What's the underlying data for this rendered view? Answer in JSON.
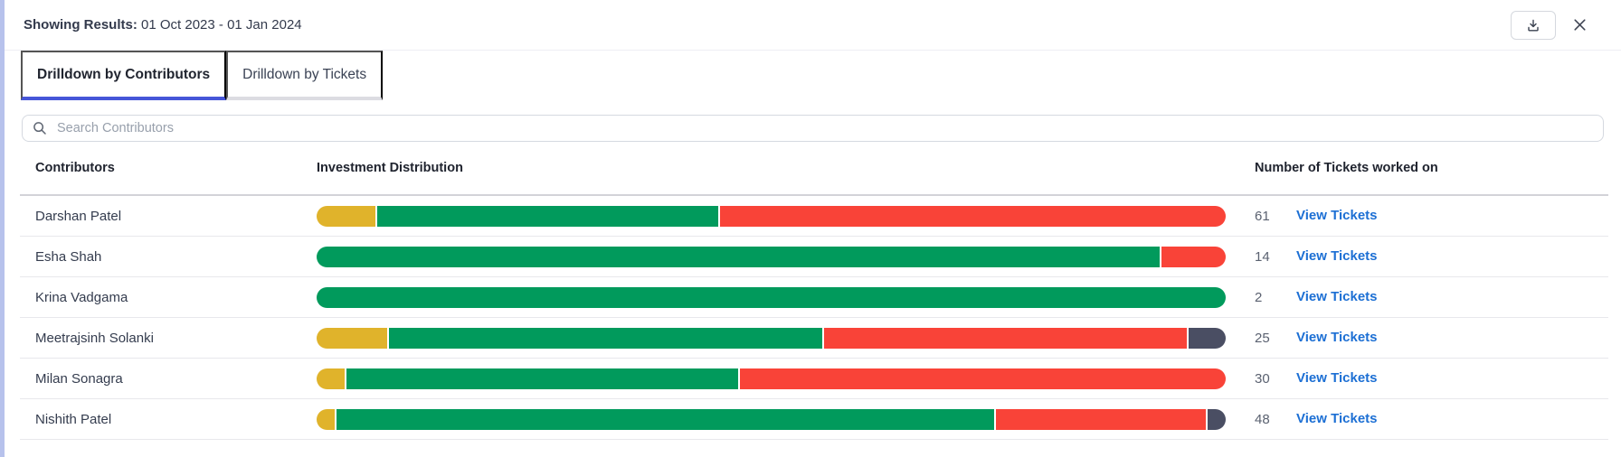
{
  "topbar": {
    "showing_label": "Showing Results:",
    "date_range": "01 Oct 2023 - 01 Jan 2024",
    "download_icon": "download-icon",
    "close_icon": "close-icon"
  },
  "tabs": [
    {
      "label": "Drilldown by Contributors",
      "active": true
    },
    {
      "label": "Drilldown by Tickets",
      "active": false
    }
  ],
  "search": {
    "placeholder": "Search Contributors",
    "value": "",
    "icon": "search-icon"
  },
  "table": {
    "columns": {
      "contributors": "Contributors",
      "distribution": "Investment Distribution",
      "tickets": "Number of Tickets worked on"
    },
    "view_link_label": "View Tickets",
    "rows": [
      {
        "name": "Darshan Patel",
        "tickets": "61",
        "segments": [
          {
            "color": "yellow",
            "pct": 6.5
          },
          {
            "color": "green",
            "pct": 37.7
          },
          {
            "color": "red",
            "pct": 55.8
          }
        ]
      },
      {
        "name": "Esha Shah",
        "tickets": "14",
        "segments": [
          {
            "color": "green",
            "pct": 92.9
          },
          {
            "color": "red",
            "pct": 7.1
          }
        ]
      },
      {
        "name": "Krina Vadgama",
        "tickets": "2",
        "segments": [
          {
            "color": "green",
            "pct": 100
          }
        ]
      },
      {
        "name": "Meetrajsinh Solanki",
        "tickets": "25",
        "segments": [
          {
            "color": "yellow",
            "pct": 7.8
          },
          {
            "color": "green",
            "pct": 48.0
          },
          {
            "color": "red",
            "pct": 40.1
          },
          {
            "color": "dark",
            "pct": 4.1
          }
        ]
      },
      {
        "name": "Milan Sonagra",
        "tickets": "30",
        "segments": [
          {
            "color": "yellow",
            "pct": 3.1
          },
          {
            "color": "green",
            "pct": 43.3
          },
          {
            "color": "red",
            "pct": 53.6
          }
        ]
      },
      {
        "name": "Nishith Patel",
        "tickets": "48",
        "segments": [
          {
            "color": "yellow",
            "pct": 2.0
          },
          {
            "color": "green",
            "pct": 72.8
          },
          {
            "color": "red",
            "pct": 23.2
          },
          {
            "color": "dark",
            "pct": 2.0
          }
        ]
      }
    ]
  },
  "colors": {
    "yellow": "#e0b32b",
    "green": "#019a5c",
    "red": "#f94338",
    "dark": "#4a4e63",
    "link": "#1c6fd4",
    "accent": "#4656d8",
    "strip": "#b7c2ec"
  }
}
